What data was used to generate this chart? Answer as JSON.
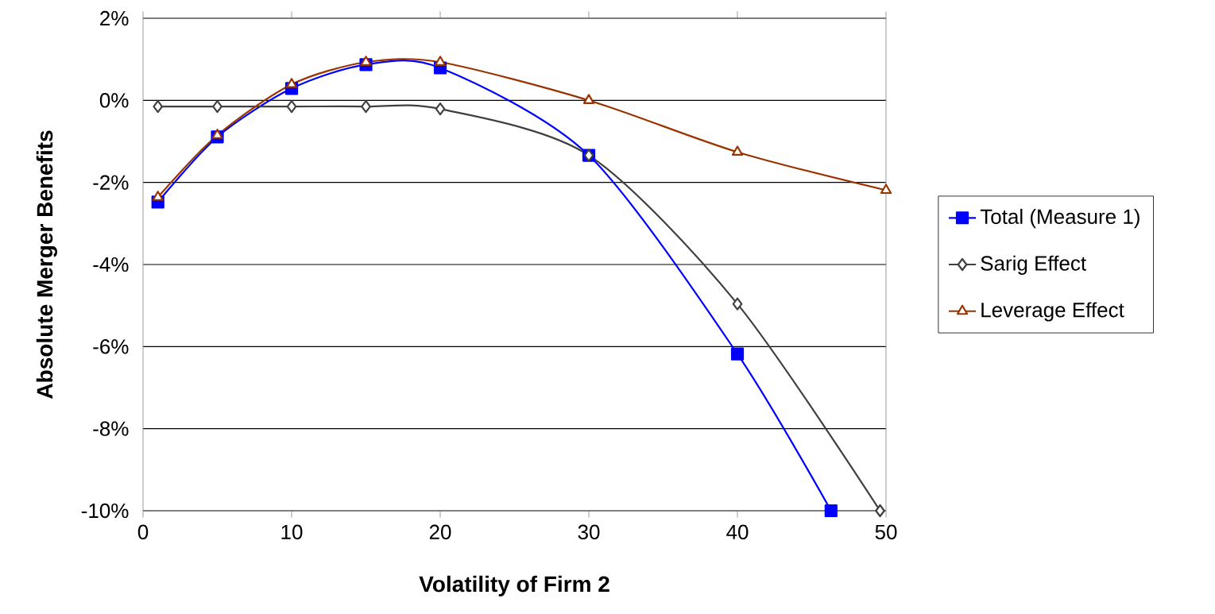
{
  "chart_data": {
    "type": "line",
    "xlabel": "Volatility of Firm 2",
    "ylabel": "Absolute Merger Benefits",
    "xlim": [
      0,
      50
    ],
    "xticks": [
      0,
      10,
      20,
      30,
      40,
      50
    ],
    "ylim": [
      -10,
      2
    ],
    "yticks": [
      {
        "value": -10,
        "label": "-10%"
      },
      {
        "value": -8,
        "label": "-8%"
      },
      {
        "value": -6,
        "label": "-6%"
      },
      {
        "value": -4,
        "label": "-4%"
      },
      {
        "value": -2,
        "label": "-2%"
      },
      {
        "value": 0,
        "label": "0%"
      },
      {
        "value": 2,
        "label": "2%"
      }
    ],
    "grid": "y",
    "legend": "right",
    "line_style": "solid",
    "series": [
      {
        "name": "Total (Measure 1)",
        "color": "#0000ff",
        "marker": "square",
        "x": [
          1,
          5,
          10,
          15,
          20,
          30,
          40,
          46.3
        ],
        "values": [
          -2.48,
          -0.89,
          0.29,
          0.87,
          0.79,
          -1.34,
          -6.18,
          -10
        ]
      },
      {
        "name": "Sarig Effect",
        "color": "#404040",
        "marker": "diamond",
        "x": [
          1,
          5,
          10,
          15,
          20,
          30,
          40,
          49.6
        ],
        "values": [
          -0.15,
          -0.15,
          -0.15,
          -0.15,
          -0.21,
          -1.34,
          -4.96,
          -10
        ]
      },
      {
        "name": "Leverage Effect",
        "color": "#993300",
        "marker": "triangle",
        "x": [
          1,
          5,
          10,
          15,
          20,
          30,
          40,
          50
        ],
        "values": [
          -2.36,
          -0.85,
          0.39,
          0.93,
          0.93,
          0,
          -1.26,
          -2.19
        ]
      }
    ]
  }
}
